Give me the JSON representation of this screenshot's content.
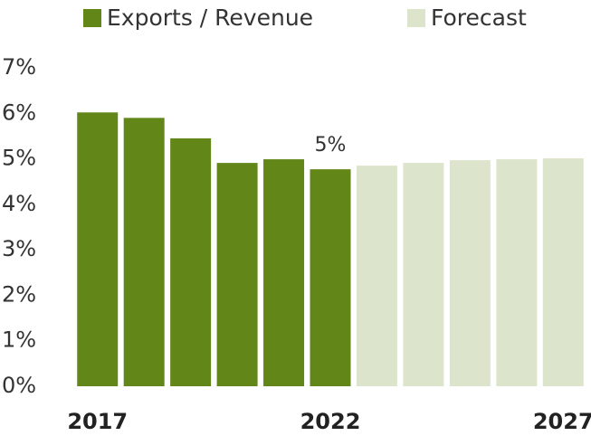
{
  "chart_data": {
    "type": "bar",
    "categories": [
      "2017",
      null,
      null,
      null,
      null,
      "2022",
      null,
      null,
      null,
      null,
      "2027"
    ],
    "series": [
      {
        "name": "Exports / Revenue",
        "color": "#638619",
        "values": [
          6.02,
          5.9,
          5.45,
          4.91,
          4.99,
          4.77,
          null,
          null,
          null,
          null,
          null
        ],
        "value_labels": [
          null,
          null,
          null,
          null,
          null,
          "5%",
          null,
          null,
          null,
          null,
          null
        ]
      },
      {
        "name": "Forecast",
        "color": "#dce5cb",
        "values": [
          null,
          null,
          null,
          null,
          null,
          null,
          4.85,
          4.91,
          4.97,
          4.99,
          5.01
        ]
      }
    ],
    "ylim": [
      0,
      7
    ],
    "yticks": [
      {
        "value": 0,
        "label": "0%"
      },
      {
        "value": 1,
        "label": "1%"
      },
      {
        "value": 2,
        "label": "2%"
      },
      {
        "value": 3,
        "label": "3%"
      },
      {
        "value": 4,
        "label": "4%"
      },
      {
        "value": 5,
        "label": "5%"
      },
      {
        "value": 6,
        "label": "6%"
      },
      {
        "value": 7,
        "label": "7%"
      }
    ],
    "grid": false
  }
}
